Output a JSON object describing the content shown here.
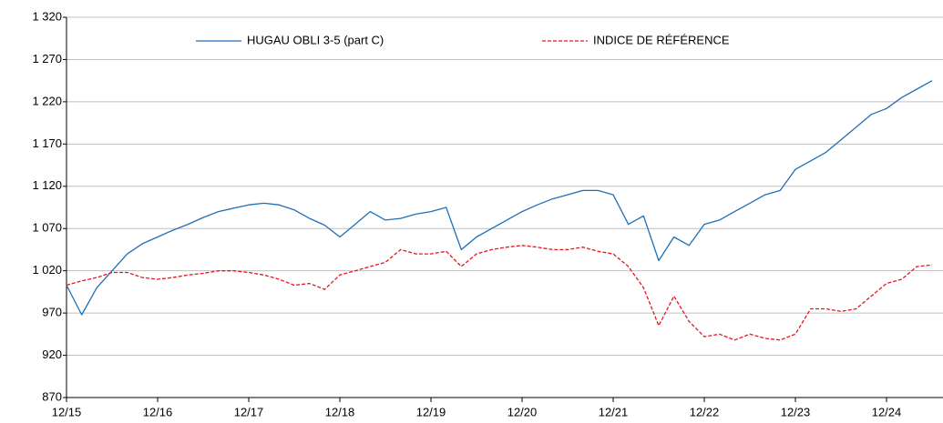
{
  "chart_data": {
    "type": "line",
    "categories": [
      "12/15",
      null,
      null,
      null,
      null,
      null,
      "12/16",
      null,
      null,
      null,
      null,
      null,
      "12/17",
      null,
      null,
      null,
      null,
      null,
      "12/18",
      null,
      null,
      null,
      null,
      null,
      "12/19",
      null,
      null,
      null,
      null,
      null,
      "12/20",
      null,
      null,
      null,
      null,
      null,
      "12/21",
      null,
      null,
      null,
      null,
      null,
      "12/22",
      null,
      null,
      null,
      null,
      null,
      "12/23",
      null,
      null,
      null,
      null,
      null,
      "12/24",
      null,
      null,
      null
    ],
    "series": [
      {
        "name": "HUGAU OBLI 3-5 (part C)",
        "color": "#1f6fb8",
        "dash": false,
        "values": [
          1003,
          968,
          1000,
          1020,
          1040,
          1052,
          1060,
          1068,
          1075,
          1083,
          1090,
          1094,
          1098,
          1100,
          1098,
          1092,
          1082,
          1074,
          1060,
          1075,
          1090,
          1080,
          1082,
          1087,
          1090,
          1095,
          1045,
          1060,
          1070,
          1080,
          1090,
          1098,
          1105,
          1110,
          1115,
          1115,
          1110,
          1075,
          1085,
          1032,
          1060,
          1050,
          1075,
          1080,
          1090,
          1100,
          1110,
          1115,
          1140,
          1150,
          1160,
          1175,
          1190,
          1205,
          1212,
          1225,
          1235,
          1245
        ]
      },
      {
        "name": "INDICE DE RÉFÉRENCE",
        "color": "#e8141b",
        "dash": true,
        "values": [
          1003,
          1008,
          1012,
          1018,
          1018,
          1012,
          1010,
          1012,
          1015,
          1017,
          1020,
          1020,
          1018,
          1015,
          1010,
          1003,
          1005,
          998,
          1015,
          1020,
          1025,
          1030,
          1045,
          1040,
          1040,
          1043,
          1025,
          1040,
          1045,
          1048,
          1050,
          1048,
          1045,
          1045,
          1048,
          1043,
          1040,
          1025,
          1000,
          955,
          990,
          960,
          942,
          945,
          938,
          945,
          940,
          938,
          945,
          975,
          975,
          972,
          975,
          990,
          1005,
          1010,
          1025,
          1027
        ]
      }
    ],
    "ylim": [
      870,
      1320
    ],
    "yticks": [
      {
        "value": 870,
        "label": "870"
      },
      {
        "value": 920,
        "label": "920"
      },
      {
        "value": 970,
        "label": "970"
      },
      {
        "value": 1020,
        "label": "1 020"
      },
      {
        "value": 1070,
        "label": "1 070"
      },
      {
        "value": 1120,
        "label": "1 120"
      },
      {
        "value": 1170,
        "label": "1 170"
      },
      {
        "value": 1220,
        "label": "1 220"
      },
      {
        "value": 1270,
        "label": "1 270"
      },
      {
        "value": 1320,
        "label": "1 320"
      }
    ],
    "grid": true
  }
}
